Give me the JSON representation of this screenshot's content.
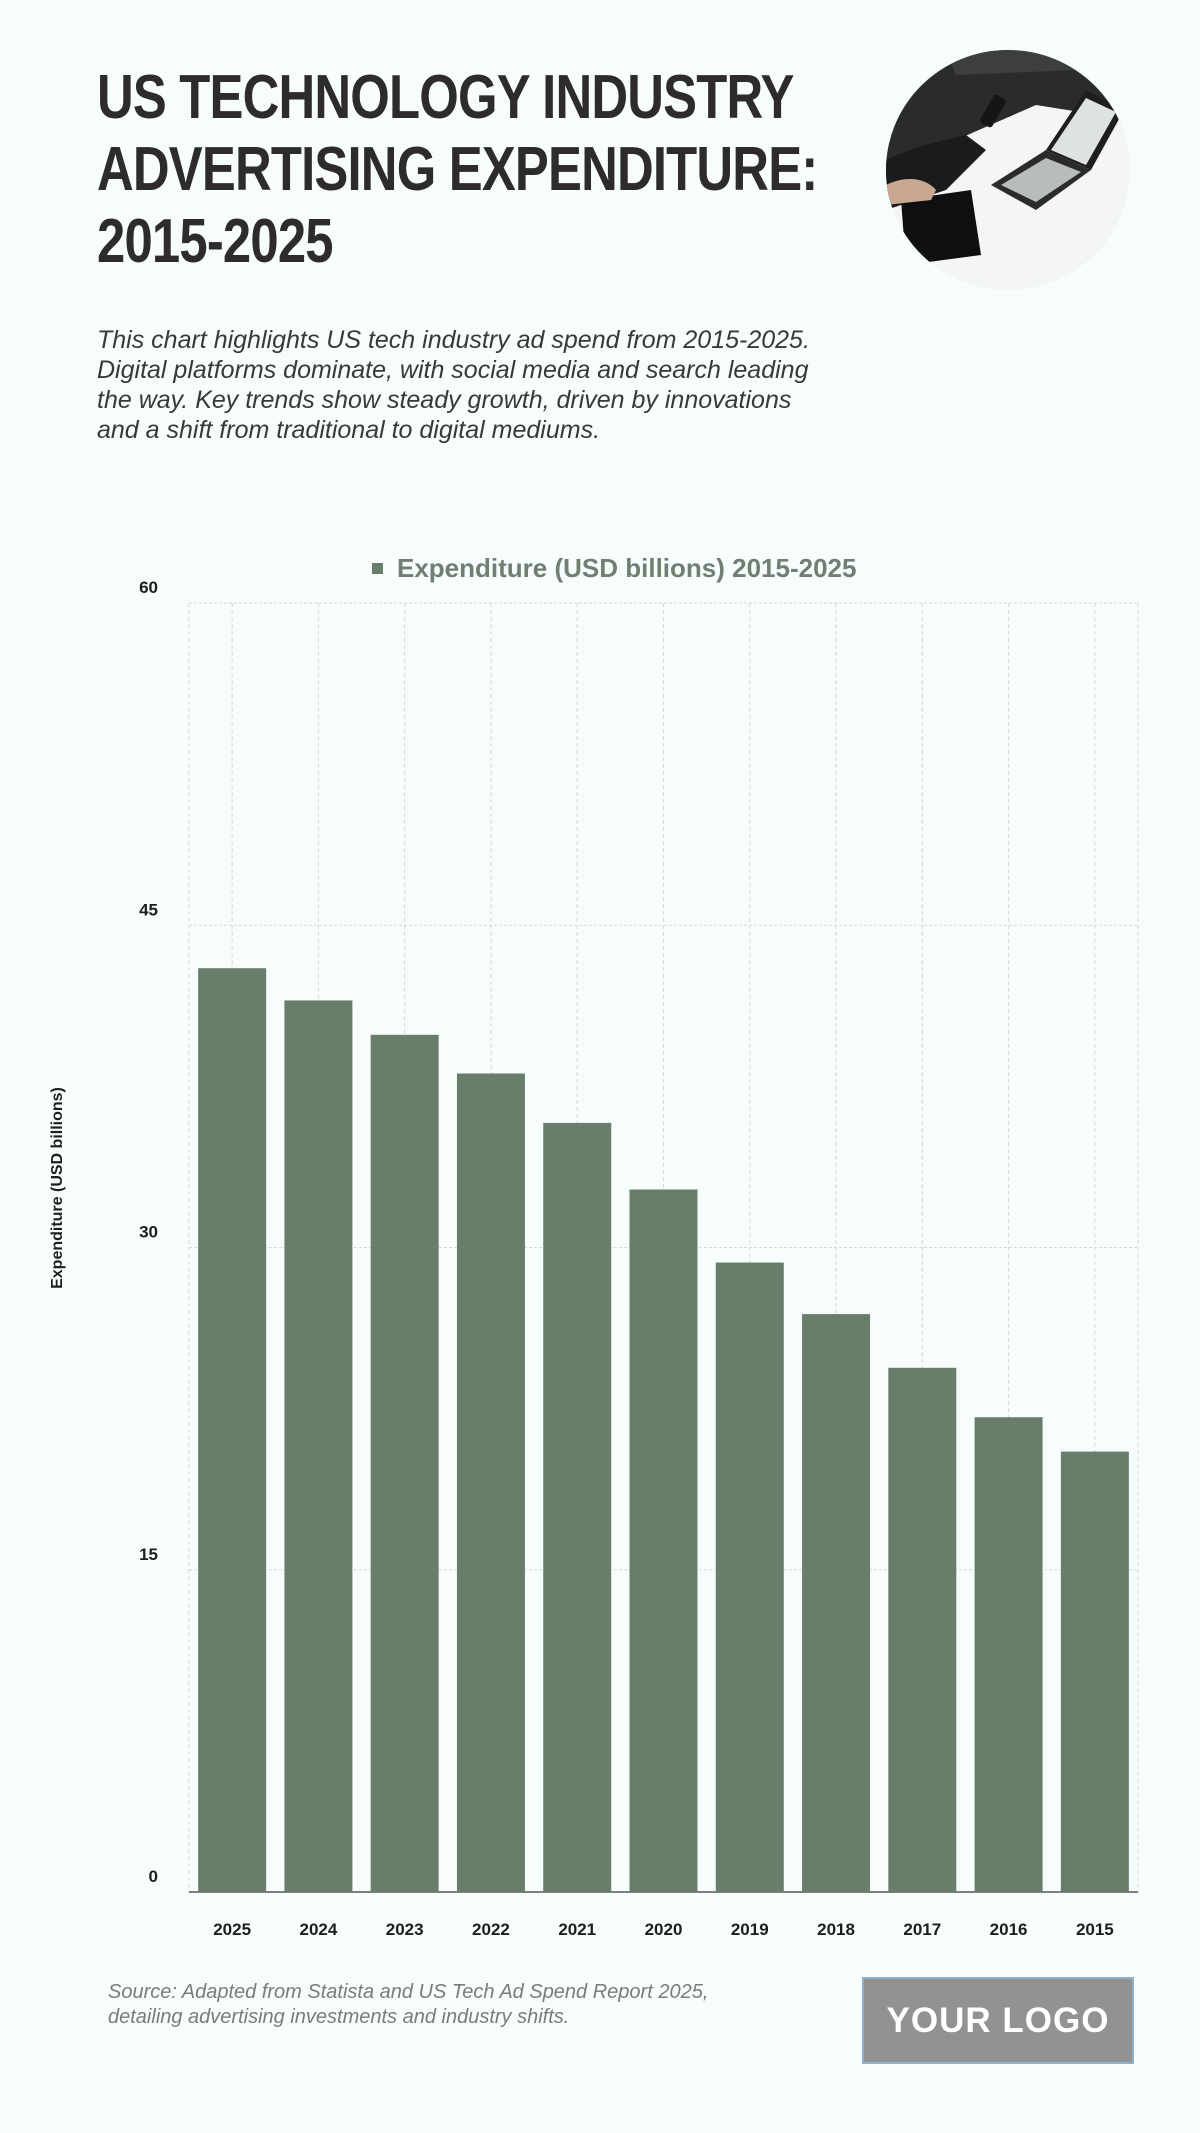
{
  "header": {
    "title_lines": [
      "US TECHNOLOGY INDUSTRY",
      "ADVERTISING EXPENDITURE:",
      "2015-2025"
    ],
    "description": "This chart highlights US tech industry ad spend from 2015-2025. Digital platforms dominate, with social media and search leading the way. Key trends show steady growth, driven by innovations and a shift from traditional to digital mediums.",
    "image_icon": "laptop-desk-photo"
  },
  "footer": {
    "source": "Source: Adapted from Statista and US Tech Ad Spend Report 2025, detailing advertising investments and industry shifts.",
    "logo": "YOUR LOGO"
  },
  "colors": {
    "bar": "#687e6a",
    "legend_text": "#727e72",
    "background": "#f6fdfc",
    "grid": "#d4d8d8"
  },
  "chart_data": {
    "type": "bar",
    "title": "",
    "legend": [
      "Expenditure (USD billions) 2015-2025"
    ],
    "legend_position": "top",
    "xlabel": "",
    "ylabel": "Expenditure (USD billions)",
    "ylim": [
      0,
      60
    ],
    "yticks": [
      "0",
      "15",
      "30",
      "45",
      "60"
    ],
    "grid": true,
    "categories": [
      "2025",
      "2024",
      "2023",
      "2022",
      "2021",
      "2020",
      "2019",
      "2018",
      "2017",
      "2016",
      "2015"
    ],
    "series": [
      {
        "name": "Expenditure (USD billions) 2015-2025",
        "values": [
          43.0,
          41.5,
          39.9,
          38.1,
          35.8,
          32.7,
          29.3,
          26.9,
          24.4,
          22.1,
          20.5
        ]
      }
    ]
  }
}
